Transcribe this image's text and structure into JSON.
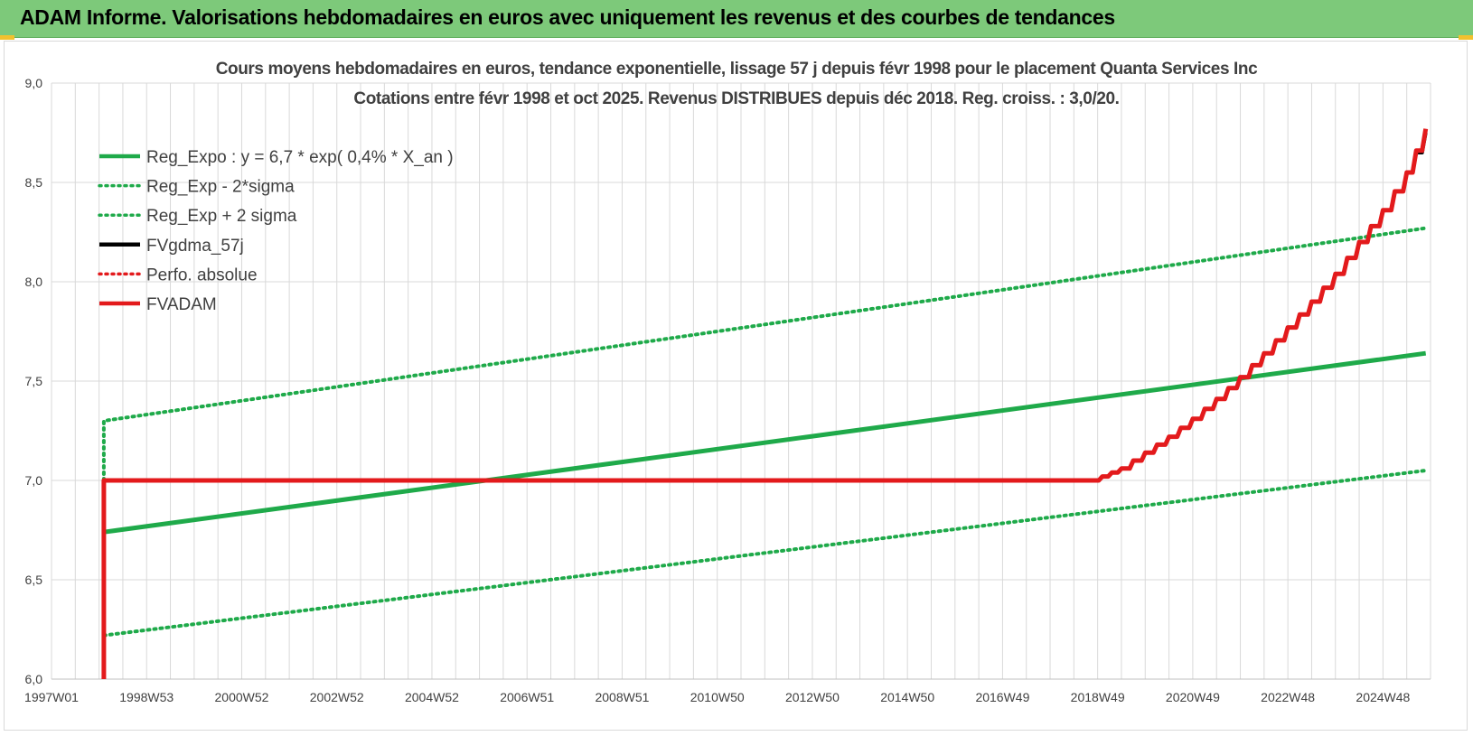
{
  "banner": {
    "title": "ADAM Informe. Valorisations hebdomadaires en euros avec uniquement les revenus et des courbes de tendances",
    "color": "#7dc97a"
  },
  "chart_data": {
    "type": "line",
    "title_line1": "Cours moyens hebdomadaires en euros, tendance exponentielle, lissage 57 j depuis févr 1998 pour le placement Quanta Services Inc",
    "title_line2": "Cotations entre févr 1998 et oct 2025. Revenus DISTRIBUES depuis déc 2018. Reg. croiss. : 3,0/20.",
    "xlabel": "",
    "ylabel": "",
    "xlim": [
      1997.0,
      2026.0
    ],
    "ylim": [
      6.0,
      9.0
    ],
    "y_ticks": [
      6.0,
      6.5,
      7.0,
      7.5,
      8.0,
      8.5,
      9.0
    ],
    "y_tick_labels": [
      "6,0",
      "6,5",
      "7,0",
      "7,5",
      "8,0",
      "8,5",
      "9,0"
    ],
    "x_ticks": [
      {
        "x": 1997.0,
        "label": "1997W01"
      },
      {
        "x": 1999.0,
        "label": "1998W53"
      },
      {
        "x": 2001.0,
        "label": "2000W52"
      },
      {
        "x": 2003.0,
        "label": "2002W52"
      },
      {
        "x": 2005.0,
        "label": "2004W52"
      },
      {
        "x": 2007.0,
        "label": "2006W51"
      },
      {
        "x": 2009.0,
        "label": "2008W51"
      },
      {
        "x": 2011.0,
        "label": "2010W50"
      },
      {
        "x": 2013.0,
        "label": "2012W50"
      },
      {
        "x": 2015.0,
        "label": "2014W50"
      },
      {
        "x": 2017.0,
        "label": "2016W49"
      },
      {
        "x": 2019.0,
        "label": "2018W49"
      },
      {
        "x": 2021.0,
        "label": "2020W49"
      },
      {
        "x": 2023.0,
        "label": "2022W48"
      },
      {
        "x": 2025.0,
        "label": "2024W48"
      }
    ],
    "minor_grid_step": 0.5,
    "grid": true,
    "legend_position": "top-left",
    "series": [
      {
        "name": "Reg_Expo : y = 6,7 * exp( 0,4% *  X_an )",
        "color": "#1faa4a",
        "style": "solid",
        "width": 5,
        "x": [
          1998.1,
          2025.9
        ],
        "y": [
          6.74,
          7.64
        ]
      },
      {
        "name": "Reg_Exp - 2*sigma",
        "color": "#1faa4a",
        "style": "dotted",
        "width": 4,
        "x": [
          1998.1,
          2025.9
        ],
        "y": [
          6.22,
          7.05
        ]
      },
      {
        "name": "Reg_Exp + 2 sigma",
        "color": "#1faa4a",
        "style": "dotted",
        "width": 4,
        "x": [
          1998.1,
          1998.1,
          2025.9
        ],
        "y": [
          7.0,
          7.3,
          8.27
        ]
      },
      {
        "name": "FVgdma_57j",
        "color": "#000000",
        "style": "solid",
        "width": 4,
        "x": [
          2018.9,
          2019.5,
          2020.0,
          2020.5,
          2021.0,
          2021.5,
          2022.0,
          2022.5,
          2023.0,
          2023.5,
          2024.0,
          2024.5,
          2025.0,
          2025.5,
          2025.9
        ],
        "y": [
          7.0,
          7.06,
          7.14,
          7.22,
          7.31,
          7.41,
          7.52,
          7.64,
          7.77,
          7.9,
          8.04,
          8.2,
          8.36,
          8.55,
          8.75
        ]
      },
      {
        "name": "Perfo. absolue",
        "color": "#e31a1c",
        "style": "dotted",
        "width": 3,
        "x": [],
        "y": []
      },
      {
        "name": "FVADAM",
        "color": "#e31a1c",
        "style": "solid",
        "width": 5,
        "x": [
          1998.1,
          1998.1,
          2018.9,
          2019.5,
          2020.0,
          2020.5,
          2021.0,
          2021.5,
          2022.0,
          2022.5,
          2023.0,
          2023.5,
          2024.0,
          2024.5,
          2025.0,
          2025.5,
          2025.9
        ],
        "y": [
          6.0,
          7.0,
          7.0,
          7.06,
          7.14,
          7.22,
          7.31,
          7.41,
          7.52,
          7.64,
          7.77,
          7.9,
          8.04,
          8.2,
          8.36,
          8.55,
          8.77
        ]
      }
    ]
  }
}
